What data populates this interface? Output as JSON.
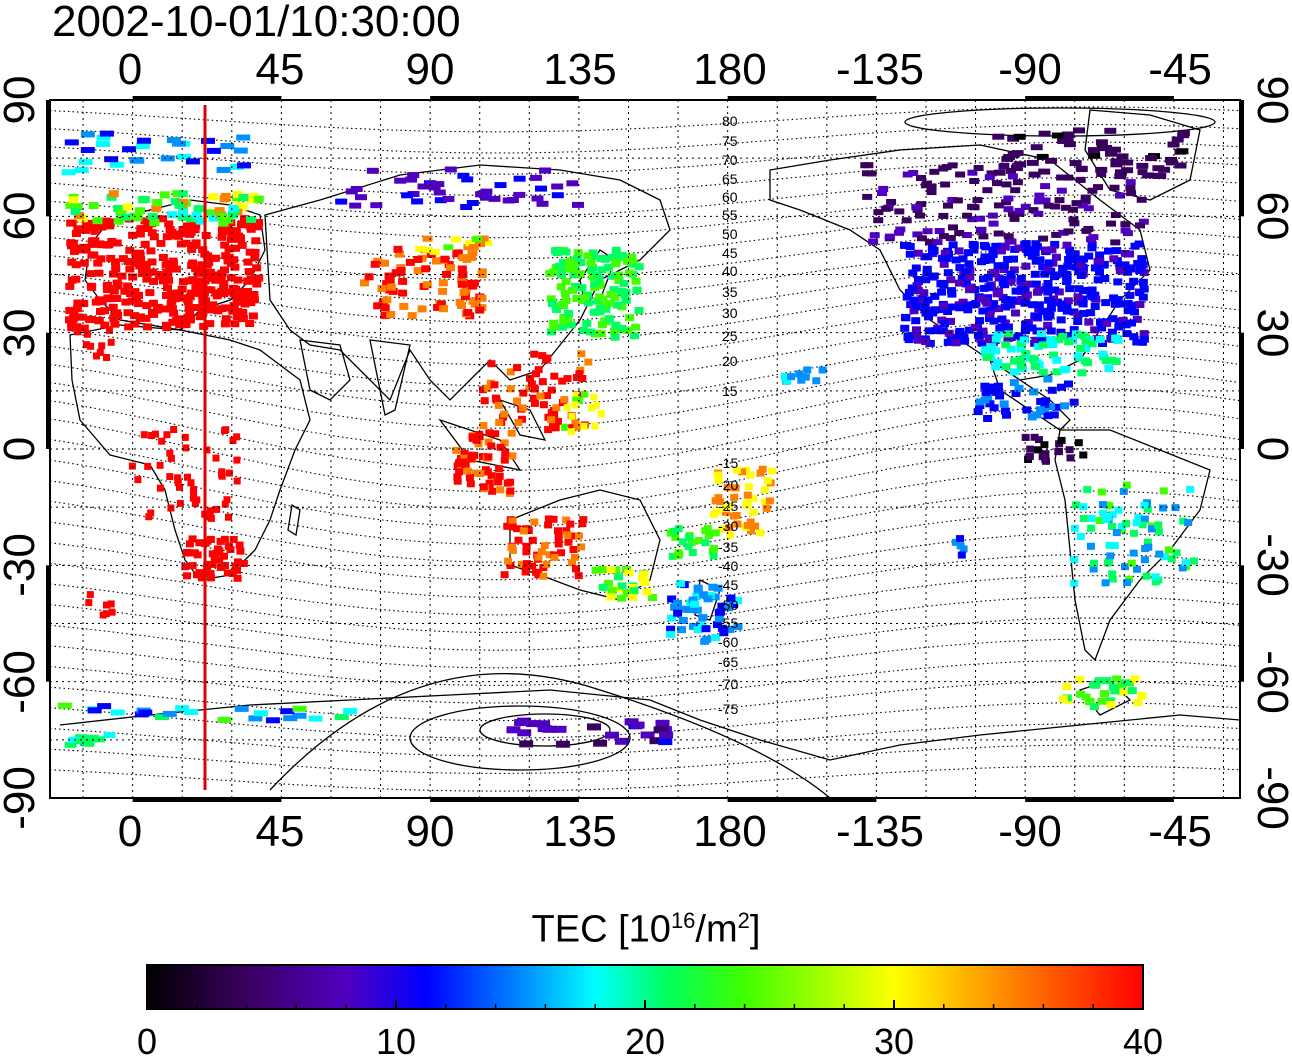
{
  "title": "2002-10-01/10:30:00",
  "map": {
    "top_lon_ticks": [
      "0",
      "45",
      "90",
      "135",
      "180",
      "-135",
      "-90",
      "-45"
    ],
    "bottom_lon_ticks": [
      "0",
      "45",
      "90",
      "135",
      "180",
      "-135",
      "-90",
      "-45"
    ],
    "left_lat_ticks": [
      "90",
      "60",
      "30",
      "0",
      "-30",
      "-60",
      "-90"
    ],
    "right_lat_ticks": [
      "90",
      "60",
      "30",
      "0",
      "-30",
      "-60",
      "-90"
    ],
    "contour_labels_north": [
      "80",
      "75",
      "70",
      "65",
      "60",
      "55",
      "50",
      "45",
      "40",
      "35",
      "30",
      "25",
      "20",
      "15"
    ],
    "contour_labels_south": [
      "-15",
      "-20",
      "-25",
      "-30",
      "-35",
      "-40",
      "-45",
      "-50",
      "-55",
      "-60",
      "-65",
      "-70",
      "-75"
    ],
    "marker_longitude": 22,
    "lon_range": [
      -25,
      335
    ],
    "lat_range": [
      -90,
      90
    ],
    "colors": {
      "marker_line": "#e00000",
      "grid": "#000000"
    }
  },
  "colorbar": {
    "label_main": "TEC  [10",
    "label_sup1": "16",
    "label_mid": "/m",
    "label_sup2": "2",
    "label_end": "]",
    "ticks": [
      "0",
      "10",
      "20",
      "30",
      "40"
    ],
    "range": [
      0,
      40
    ],
    "palette": [
      "#000000",
      "#3a0060",
      "#5000c0",
      "#0000ff",
      "#0090ff",
      "#00ffff",
      "#00ff60",
      "#40ff00",
      "#ffff00",
      "#ff8000",
      "#ff0000"
    ]
  }
}
